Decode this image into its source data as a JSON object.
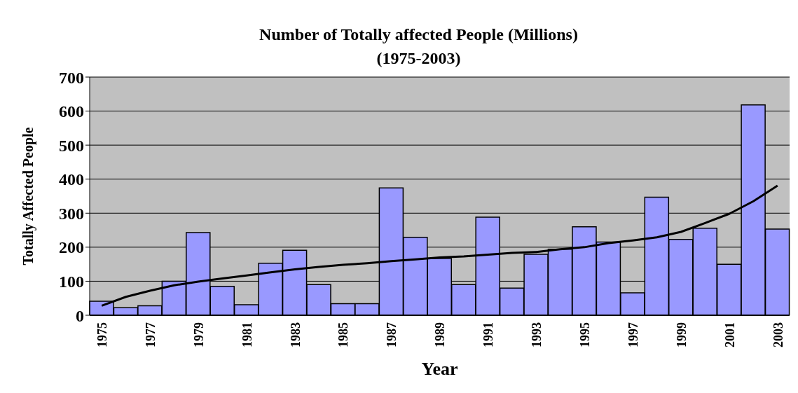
{
  "chart_data": {
    "type": "bar",
    "title": "Number of Totally affected People (Millions)",
    "subtitle": "(1975-2003)",
    "xlabel": "Year",
    "ylabel": "Totally Affected People",
    "categories": [
      "1975",
      null,
      "1977",
      null,
      "1979",
      null,
      "1981",
      null,
      "1983",
      null,
      "1985",
      null,
      "1987",
      null,
      "1989",
      null,
      "1991",
      null,
      "1993",
      null,
      "1995",
      null,
      "1997",
      null,
      "1999",
      null,
      "2001",
      null,
      "2003"
    ],
    "series": [
      {
        "color": "#9999ff",
        "values": [
          41,
          22,
          28,
          100,
          243,
          85,
          31,
          153,
          191,
          90,
          34,
          34,
          374,
          229,
          167,
          90,
          288,
          80,
          179,
          194,
          260,
          215,
          66,
          347,
          223,
          256,
          150,
          618,
          253
        ]
      },
      {
        "type": "line",
        "color": "#000000",
        "values": [
          28,
          54,
          72,
          88,
          99,
          108,
          117,
          126,
          135,
          142,
          148,
          153,
          159,
          164,
          170,
          173,
          178,
          183,
          186,
          194,
          200,
          212,
          220,
          229,
          245,
          271,
          298,
          335,
          381
        ]
      }
    ],
    "ylim": [
      0,
      700
    ],
    "yticks": [
      0,
      100,
      200,
      300,
      400,
      500,
      600,
      700
    ],
    "grid": "y",
    "legend": false,
    "marker": "none",
    "line_style": "solid"
  }
}
